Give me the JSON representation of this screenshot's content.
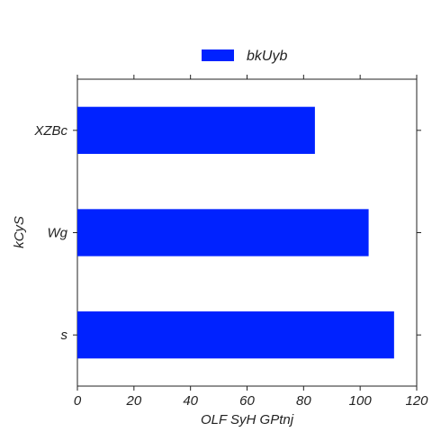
{
  "chart_data": {
    "type": "bar",
    "orientation": "horizontal",
    "categories": [
      "XZBc",
      "Wg",
      "s"
    ],
    "series": [
      {
        "name": "bkUyb",
        "values": [
          84,
          103,
          112
        ],
        "color": "#0022ff"
      }
    ],
    "xlabel": "OLF SyH GPtnj",
    "ylabel": "kCyS",
    "xlim": [
      0,
      120
    ],
    "xticks": [
      "0",
      "20",
      "40",
      "60",
      "80",
      "100",
      "120"
    ],
    "grid": false,
    "legend_position": "top-center"
  }
}
